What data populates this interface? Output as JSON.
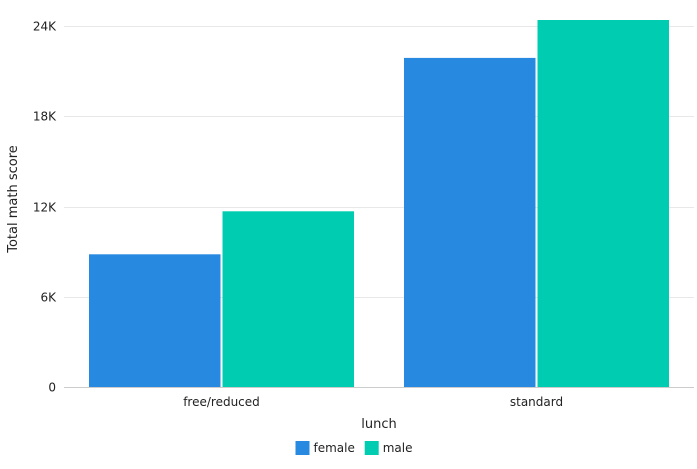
{
  "chart_data": {
    "type": "bar",
    "categories": [
      "free/reduced",
      "standard"
    ],
    "series": [
      {
        "name": "female",
        "values": [
          8820,
          21880
        ],
        "color": "#2889E1"
      },
      {
        "name": "male",
        "values": [
          11680,
          24400
        ],
        "color": "#00CCB1"
      }
    ],
    "xlabel": "lunch",
    "ylabel": "Total math score",
    "ylim": [
      0,
      24400
    ],
    "yticks": [
      0,
      6000,
      12000,
      18000,
      24000
    ],
    "ytick_labels": [
      "0",
      "6K",
      "12K",
      "18K",
      "24K"
    ],
    "grid": true,
    "legend_position": "bottom-center"
  }
}
